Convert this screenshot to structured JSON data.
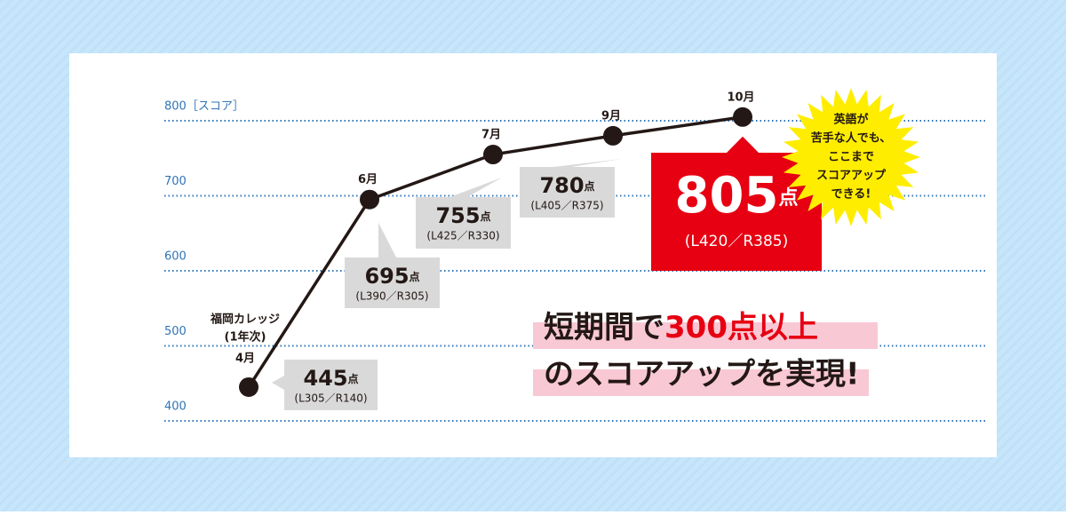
{
  "chart_data": {
    "type": "line",
    "categories": [
      "4月",
      "6月",
      "7月",
      "9月",
      "10月"
    ],
    "values": [
      445,
      695,
      755,
      780,
      805
    ],
    "value_labels": [
      "445点",
      "695点",
      "755点",
      "780点",
      "805点"
    ],
    "breakdowns": [
      "(L305／R140)",
      "(L390／R305)",
      "(L425／R330)",
      "(L405／R375)",
      "(L420／R385)"
    ],
    "color": "#231815",
    "highlight_color": "#e60012",
    "grid": true,
    "ylim": [
      400,
      800
    ],
    "yticks": [
      400,
      500,
      600,
      700,
      {
        "value": 800,
        "label": "800［スコア］"
      }
    ],
    "start_note": [
      "福岡カレッジ",
      "(1年次)"
    ],
    "headline": [
      "短期間で",
      "300点以上",
      "のスコアアップを実現!"
    ],
    "badge": [
      "英語が",
      "苦手な人でも、",
      "ここまで",
      "スコアアップ",
      "できる!"
    ]
  }
}
